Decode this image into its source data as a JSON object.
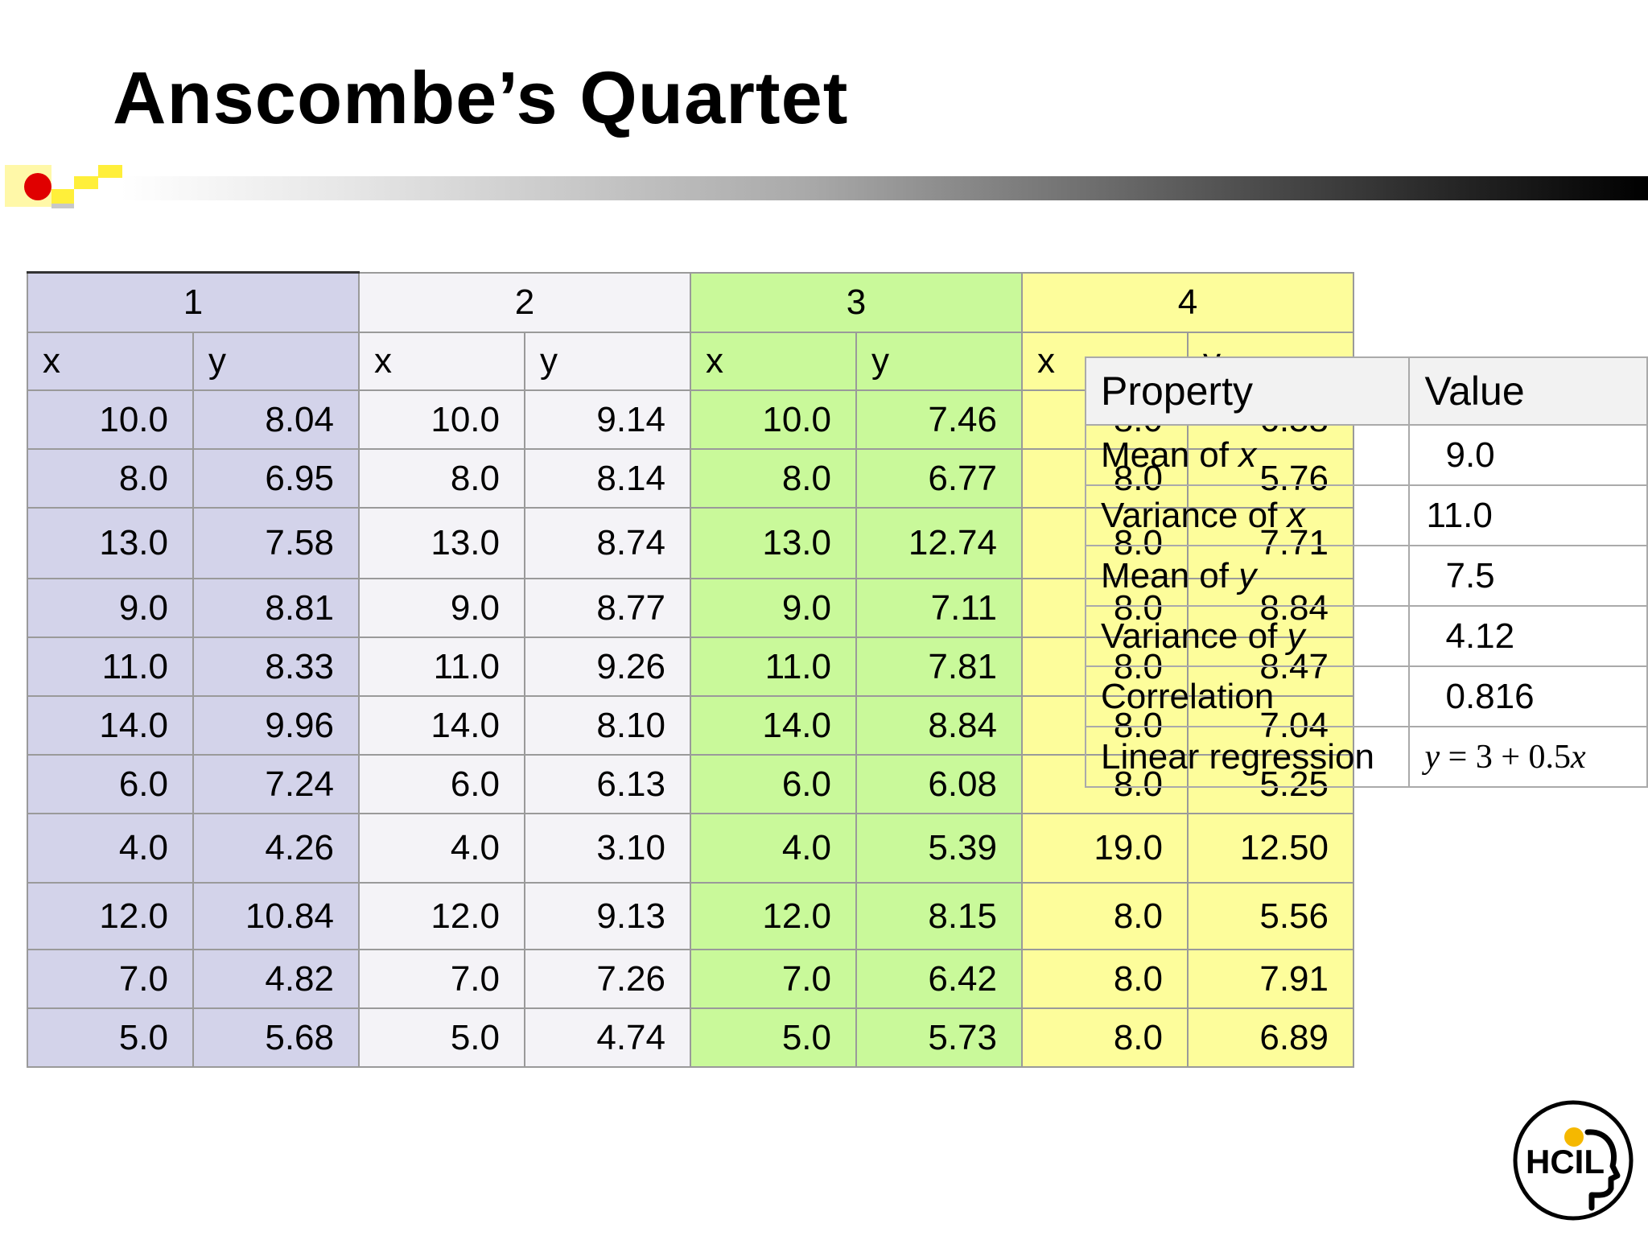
{
  "title": "Anscombe’s Quartet",
  "colors": {
    "group1": "#d3d3ea",
    "group2": "#f4f3f7",
    "group3": "#c9f99a",
    "group4": "#fdfd9b",
    "accent_dot": "#e00000",
    "accent_square": "#ffef3a"
  },
  "quartet": {
    "groups": [
      "1",
      "2",
      "3",
      "4"
    ],
    "col_labels": [
      "x",
      "y",
      "x",
      "y",
      "x",
      "y",
      "x",
      "y"
    ],
    "rows": [
      [
        "10.0",
        "8.04",
        "10.0",
        "9.14",
        "10.0",
        "7.46",
        "8.0",
        "6.58"
      ],
      [
        "8.0",
        "6.95",
        "8.0",
        "8.14",
        "8.0",
        "6.77",
        "8.0",
        "5.76"
      ],
      [
        "13.0",
        "7.58",
        "13.0",
        "8.74",
        "13.0",
        "12.74",
        "8.0",
        "7.71"
      ],
      [
        "9.0",
        "8.81",
        "9.0",
        "8.77",
        "9.0",
        "7.11",
        "8.0",
        "8.84"
      ],
      [
        "11.0",
        "8.33",
        "11.0",
        "9.26",
        "11.0",
        "7.81",
        "8.0",
        "8.47"
      ],
      [
        "14.0",
        "9.96",
        "14.0",
        "8.10",
        "14.0",
        "8.84",
        "8.0",
        "7.04"
      ],
      [
        "6.0",
        "7.24",
        "6.0",
        "6.13",
        "6.0",
        "6.08",
        "8.0",
        "5.25"
      ],
      [
        "4.0",
        "4.26",
        "4.0",
        "3.10",
        "4.0",
        "5.39",
        "19.0",
        "12.50"
      ],
      [
        "12.0",
        "10.84",
        "12.0",
        "9.13",
        "12.0",
        "8.15",
        "8.0",
        "5.56"
      ],
      [
        "7.0",
        "4.82",
        "7.0",
        "7.26",
        "7.0",
        "6.42",
        "8.0",
        "7.91"
      ],
      [
        "5.0",
        "5.68",
        "5.0",
        "4.74",
        "5.0",
        "5.73",
        "8.0",
        "6.89"
      ]
    ]
  },
  "properties": {
    "header_property": "Property",
    "header_value": "Value",
    "rows": [
      {
        "label": "Mean of ",
        "var": "x",
        "value": "9.0"
      },
      {
        "label": "Variance of ",
        "var": "x",
        "value": "11.0"
      },
      {
        "label": "Mean of ",
        "var": "y",
        "value": "7.5"
      },
      {
        "label": "Variance of ",
        "var": "y",
        "value": "4.12"
      },
      {
        "label": "Correlation",
        "var": "",
        "value": "0.816"
      }
    ],
    "regression": {
      "label": "Linear regression",
      "lhs": "y",
      "middle": " = 3 + 0.5",
      "rhs": "x"
    }
  },
  "logo": {
    "text": "HCIL",
    "icon": "hcil-logo-icon"
  }
}
